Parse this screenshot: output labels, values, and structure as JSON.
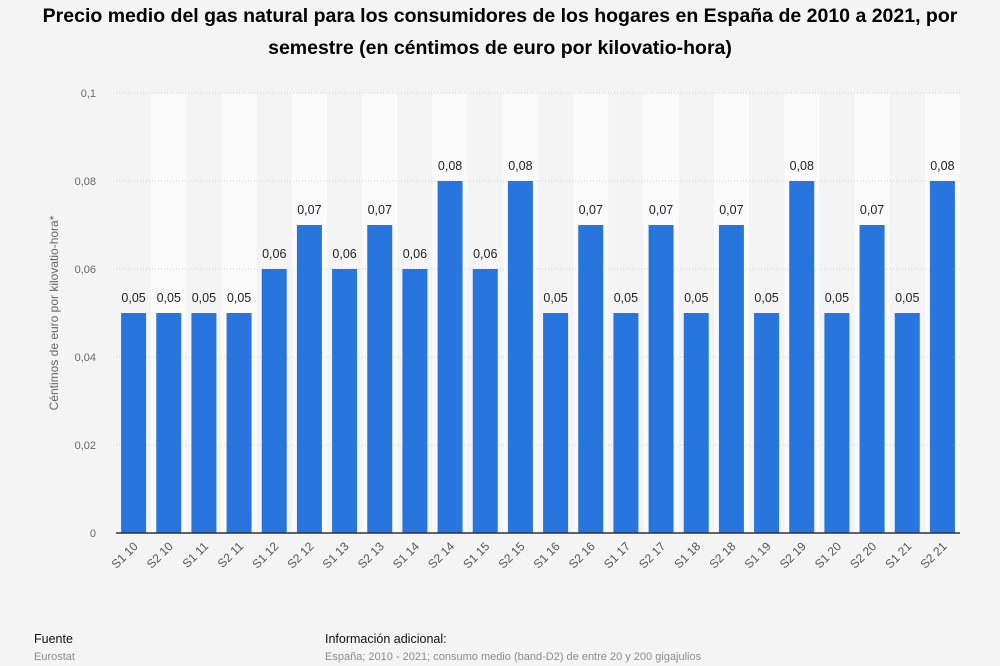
{
  "chart_data": {
    "type": "bar",
    "title": "Precio medio del gas natural para los consumidores de los hogares en España de 2010 a 2021, por semestre (en céntimos de euro por kilovatio-hora)",
    "xlabel": "",
    "ylabel": "Céntimos de euro por kilovatio-hora*",
    "ylim": [
      0,
      0.1
    ],
    "yticks": [
      "0",
      "0,02",
      "0,04",
      "0,06",
      "0,08",
      "0,1"
    ],
    "grid": true,
    "categories": [
      "S1 10",
      "S2 10",
      "S1 11",
      "S2 11",
      "S1 12",
      "S2 12",
      "S1 13",
      "S2 13",
      "S1 14",
      "S2 14",
      "S1 15",
      "S2 15",
      "S1 16",
      "S2 16",
      "S1 17",
      "S2 17",
      "S1 18",
      "S2 18",
      "S1 19",
      "S2 19",
      "S1 20",
      "S2 20",
      "S1 21",
      "S2 21"
    ],
    "values": [
      0.05,
      0.05,
      0.05,
      0.05,
      0.06,
      0.07,
      0.06,
      0.07,
      0.06,
      0.08,
      0.06,
      0.08,
      0.05,
      0.07,
      0.05,
      0.07,
      0.05,
      0.07,
      0.05,
      0.08,
      0.05,
      0.07,
      0.05,
      0.08
    ],
    "value_labels": [
      "0,05",
      "0,05",
      "0,05",
      "0,05",
      "0,06",
      "0,07",
      "0,06",
      "0,07",
      "0,06",
      "0,08",
      "0,06",
      "0,08",
      "0,05",
      "0,07",
      "0,05",
      "0,07",
      "0,05",
      "0,07",
      "0,05",
      "0,08",
      "0,05",
      "0,07",
      "0,05",
      "0,08"
    ],
    "bar_color": "#2876dd"
  },
  "footer": {
    "source_label": "Fuente",
    "source_value": "Eurostat",
    "info_label": "Información adicional:",
    "info_value": "España; 2010 - 2021; consumo medio (band-D2) de entre 20 y 200 gigajulios"
  }
}
